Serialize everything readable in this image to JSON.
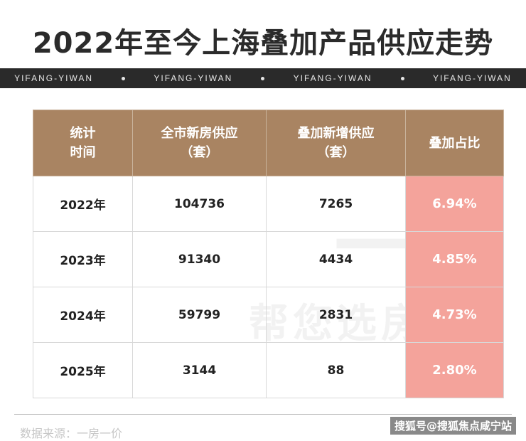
{
  "title": "2022年至今上海叠加产品供应走势",
  "band": {
    "text": [
      "YIFANG-YIWAN",
      "YIFANG-YIWAN",
      "YIFANG-YIWAN",
      "YIFANG-YIWAN"
    ]
  },
  "table": {
    "headers": [
      [
        "统计",
        "时间"
      ],
      [
        "全市新房供应",
        "（套）"
      ],
      [
        "叠加新增供应",
        "（套）"
      ],
      [
        "叠加占比"
      ]
    ],
    "rows": [
      {
        "year": "2022年",
        "city_supply": "104736",
        "stack_supply": "7265",
        "ratio": "6.94%"
      },
      {
        "year": "2023年",
        "city_supply": "91340",
        "stack_supply": "4434",
        "ratio": "4.85%"
      },
      {
        "year": "2024年",
        "city_supply": "59799",
        "stack_supply": "2831",
        "ratio": "4.73%"
      },
      {
        "year": "2025年",
        "city_supply": "3144",
        "stack_supply": "88",
        "ratio": "2.80%"
      }
    ]
  },
  "watermark": {
    "big": "一万",
    "small": "帮您选房"
  },
  "footer": {
    "note": "数据来源：一房一价",
    "credit": "搜狐号@搜狐焦点咸宁站"
  }
}
